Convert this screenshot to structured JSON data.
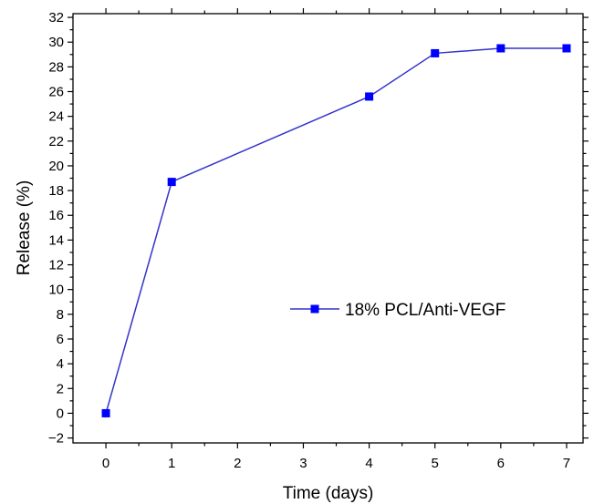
{
  "chart_data": {
    "type": "line",
    "xlabel": "Time (days)",
    "ylabel": "Release (%)",
    "xlim": [
      -0.5,
      7.25
    ],
    "ylim": [
      -2.4,
      32.3
    ],
    "xticks": [
      0,
      1,
      2,
      3,
      4,
      5,
      6,
      7
    ],
    "yticks": [
      -2,
      0,
      2,
      4,
      6,
      8,
      10,
      12,
      14,
      16,
      18,
      20,
      22,
      24,
      26,
      28,
      30,
      32
    ],
    "ytick_labels": [
      "−2",
      "0",
      "2",
      "4",
      "6",
      "8",
      "10",
      "12",
      "14",
      "16",
      "18",
      "20",
      "22",
      "24",
      "26",
      "28",
      "30",
      "32"
    ],
    "grid": false,
    "legend_position": "center-right",
    "series": [
      {
        "name": "18% PCL/Anti-VEGF",
        "color": "#0000ff",
        "line_color": "#3333cc",
        "marker": "square",
        "x": [
          0,
          1,
          4,
          5,
          6,
          7
        ],
        "y": [
          0,
          18.7,
          25.6,
          29.1,
          29.5,
          29.5
        ]
      }
    ]
  }
}
